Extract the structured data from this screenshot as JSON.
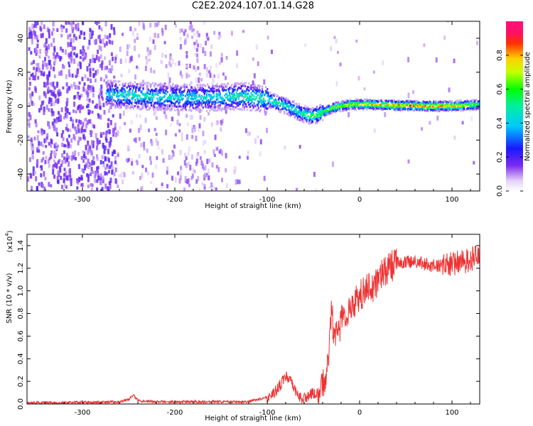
{
  "title": "C2E2.2024.107.01.14.G28",
  "chart_data": [
    {
      "type": "heatmap",
      "name": "Spectrogram",
      "xlabel": "Height of straight line (km)",
      "ylabel": "Frequency (Hz)",
      "xlim": [
        -360,
        130
      ],
      "ylim": [
        -50,
        50
      ],
      "xticks": [
        -300,
        -200,
        -100,
        0,
        100
      ],
      "yticks": [
        -40,
        -20,
        0,
        20,
        40
      ],
      "colorbar": {
        "label": "Normalized spectral amplitude",
        "range": [
          0.0,
          1.0
        ],
        "ticks": [
          0.0,
          0.2,
          0.4,
          0.6,
          0.8
        ]
      },
      "ridge": {
        "description": "dominant frequency ridge vs height",
        "x": [
          -270,
          -240,
          -200,
          -160,
          -130,
          -100,
          -80,
          -65,
          -52,
          -42,
          -30,
          -10,
          10,
          40,
          70,
          100,
          130
        ],
        "y": [
          7,
          6,
          5,
          5,
          6,
          4,
          0,
          -4,
          -6,
          -4,
          -1,
          1,
          1,
          0.5,
          0,
          0,
          1
        ],
        "amplitude": [
          0.45,
          0.5,
          0.45,
          0.45,
          0.5,
          0.55,
          0.5,
          0.5,
          0.65,
          0.6,
          0.7,
          0.75,
          0.8,
          0.85,
          0.9,
          0.85,
          0.6
        ]
      }
    },
    {
      "type": "line",
      "name": "SNR",
      "xlabel": "Height of straight line (km)",
      "ylabel": "SNR (10 * v/v)",
      "yscale_label": "(x10",
      "yscale_exponent": "4",
      "xlim": [
        -360,
        130
      ],
      "ylim": [
        0.0,
        1.5
      ],
      "xticks": [
        -300,
        -200,
        -100,
        0,
        100
      ],
      "yticks": [
        "0.0",
        "0.2",
        "0.4",
        "0.6",
        "0.8",
        "1.0",
        "1.2",
        "1.4"
      ],
      "series": [
        {
          "name": "SNR",
          "color": "#ee3333",
          "x": [
            -360,
            -340,
            -320,
            -300,
            -280,
            -260,
            -250,
            -245,
            -240,
            -220,
            -200,
            -180,
            -160,
            -140,
            -120,
            -110,
            -100,
            -90,
            -85,
            -80,
            -75,
            -70,
            -65,
            -60,
            -55,
            -50,
            -45,
            -40,
            -35,
            -32,
            -30,
            -28,
            -25,
            -22,
            -20,
            -15,
            -10,
            -5,
            0,
            5,
            10,
            15,
            20,
            25,
            30,
            35,
            40,
            50,
            60,
            70,
            80,
            90,
            100,
            110,
            120,
            130
          ],
          "y": [
            0.01,
            0.01,
            0.01,
            0.015,
            0.015,
            0.02,
            0.04,
            0.08,
            0.03,
            0.02,
            0.02,
            0.02,
            0.02,
            0.02,
            0.02,
            0.04,
            0.06,
            0.12,
            0.18,
            0.25,
            0.2,
            0.12,
            0.06,
            0.05,
            0.07,
            0.1,
            0.08,
            0.15,
            0.35,
            0.6,
            0.9,
            0.55,
            0.7,
            0.6,
            0.75,
            0.8,
            0.85,
            0.9,
            0.95,
            1.0,
            1.05,
            1.02,
            1.1,
            1.15,
            1.2,
            1.22,
            1.25,
            1.25,
            1.26,
            1.24,
            1.22,
            1.22,
            1.24,
            1.25,
            1.28,
            1.3
          ]
        }
      ]
    }
  ]
}
